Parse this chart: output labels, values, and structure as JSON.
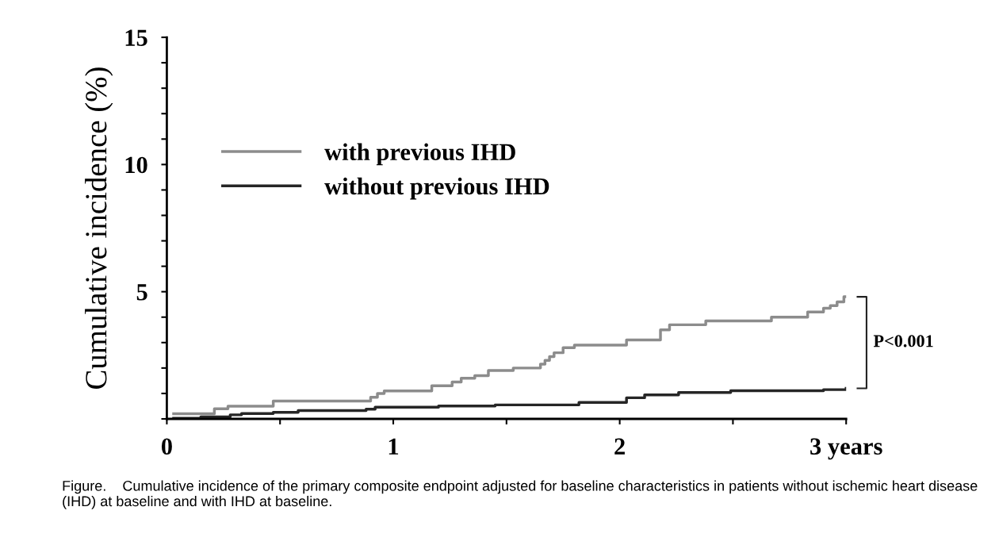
{
  "chart_data": {
    "type": "step",
    "ylabel": "Cumulative incidence (%)",
    "xlim": [
      0,
      3
    ],
    "ylim": [
      0,
      15
    ],
    "xticks": [
      0,
      {
        "value": 0.5,
        "label": null
      },
      1,
      {
        "value": 1.5,
        "label": null
      },
      2,
      {
        "value": 2.5,
        "label": null
      },
      {
        "value": 3,
        "label": "3 years"
      }
    ],
    "yticks": [
      {
        "value": 0,
        "label": null
      },
      {
        "value": 1,
        "label": null
      },
      {
        "value": 2,
        "label": null
      },
      {
        "value": 3,
        "label": null
      },
      {
        "value": 4,
        "label": null
      },
      5,
      {
        "value": 6,
        "label": null
      },
      {
        "value": 7,
        "label": null
      },
      {
        "value": 8,
        "label": null
      },
      {
        "value": 9,
        "label": null
      },
      10,
      {
        "value": 11,
        "label": null
      },
      {
        "value": 12,
        "label": null
      },
      {
        "value": 13,
        "label": null
      },
      {
        "value": 14,
        "label": null
      },
      15
    ],
    "series": [
      {
        "name": "with previous IHD",
        "color": "#8c8c8c",
        "x": [
          0.03,
          0.21,
          0.27,
          0.47,
          0.9,
          0.93,
          0.96,
          1.17,
          1.26,
          1.3,
          1.36,
          1.42,
          1.53,
          1.65,
          1.67,
          1.69,
          1.71,
          1.75,
          1.8,
          2.03,
          2.18,
          2.22,
          2.38,
          2.67,
          2.83,
          2.9,
          2.93,
          2.96,
          2.99,
          3.0
        ],
        "values": [
          0.2,
          0.4,
          0.5,
          0.7,
          0.85,
          1.0,
          1.1,
          1.3,
          1.45,
          1.6,
          1.7,
          1.9,
          2.0,
          2.15,
          2.3,
          2.45,
          2.6,
          2.8,
          2.9,
          3.1,
          3.5,
          3.7,
          3.85,
          4.0,
          4.2,
          4.35,
          4.45,
          4.6,
          4.8,
          4.8
        ]
      },
      {
        "name": "without previous IHD",
        "color": "#262626",
        "x": [
          0.03,
          0.15,
          0.28,
          0.33,
          0.47,
          0.58,
          0.88,
          0.92,
          1.2,
          1.45,
          1.72,
          1.82,
          2.03,
          2.11,
          2.26,
          2.49,
          2.9,
          3.0
        ],
        "values": [
          0.02,
          0.08,
          0.16,
          0.21,
          0.26,
          0.33,
          0.38,
          0.46,
          0.51,
          0.55,
          0.55,
          0.65,
          0.83,
          0.94,
          1.04,
          1.11,
          1.15,
          1.2
        ]
      }
    ],
    "annotations": [
      "P<0.001",
      "Figure.    Cumulative incidence of the primary composite endpoint adjusted for baseline characteristics in patients without ischemic heart disease (IHD) at baseline and with IHD at baseline."
    ],
    "legend": "top left",
    "grid": false,
    "line_style": "solid",
    "marker": "none"
  }
}
